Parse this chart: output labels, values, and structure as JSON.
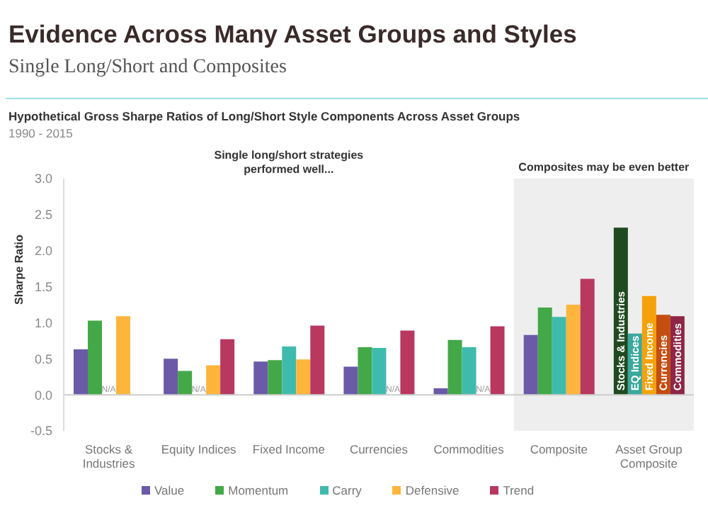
{
  "chart_data": {
    "type": "bar",
    "title": "Evidence Across Many Asset Groups and Styles",
    "subtitle": "Single Long/Short and Composites",
    "ylabel": "Sharpe Ratio",
    "annotations": [
      "Hypothetical Gross Sharpe Ratios of Long/Short Style Components Across Asset Groups",
      "1990 - 2015",
      "Single long/short strategies performed well..."
    ],
    "categories": [
      "Stocks & Industries",
      "Equity Indices",
      "Fixed Income",
      "Currencies",
      "Commodities",
      "Composite",
      "Asset Group Composite"
    ],
    "series": [
      {
        "name": "Value",
        "color": "#6a5aa8",
        "values": [
          0.63,
          0.5,
          0.46,
          0.39,
          0.09,
          0.83,
          null
        ]
      },
      {
        "name": "Momentum",
        "color": "#43a847",
        "values": [
          1.03,
          0.33,
          0.48,
          0.66,
          0.76,
          1.21,
          null
        ]
      },
      {
        "name": "Carry",
        "color": "#3fbbad",
        "values": [
          null,
          null,
          0.67,
          0.65,
          0.66,
          1.08,
          null
        ],
        "value_labels": [
          "N/A",
          "N/A",
          null,
          null,
          null,
          null,
          null
        ]
      },
      {
        "name": "Defensive",
        "color": "#fdb53c",
        "values": [
          1.09,
          0.41,
          0.49,
          null,
          null,
          1.25,
          null
        ],
        "value_labels": [
          null,
          null,
          null,
          "N/A",
          "N/A",
          null,
          null
        ]
      },
      {
        "name": "Trend",
        "color": "#b8385f",
        "values": [
          null,
          0.77,
          0.96,
          0.89,
          0.95,
          1.61,
          null
        ]
      },
      {
        "name": "Stocks & Industries",
        "color": "#1f4a1f",
        "values": [
          null,
          null,
          null,
          null,
          null,
          null,
          2.32
        ]
      },
      {
        "name": "EQ Indices",
        "color": "#3aa89e",
        "values": [
          null,
          null,
          null,
          null,
          null,
          null,
          0.85
        ]
      },
      {
        "name": "Fixed Income",
        "color": "#f5a20a",
        "values": [
          null,
          null,
          null,
          null,
          null,
          null,
          1.37
        ]
      },
      {
        "name": "Currencies",
        "color": "#c44d10",
        "values": [
          null,
          null,
          null,
          null,
          null,
          null,
          1.11
        ]
      },
      {
        "name": "Commodities",
        "color": "#8e2646",
        "values": [
          null,
          null,
          null,
          null,
          null,
          null,
          1.09
        ]
      }
    ],
    "ylim": [
      -0.5,
      3
    ],
    "yticks": [
      {
        "value": -0.5,
        "label": "-0.5"
      },
      {
        "value": 0,
        "label": "0.0"
      },
      {
        "value": 0.5,
        "label": "0.5"
      },
      {
        "value": 1,
        "label": "1.0"
      },
      {
        "value": 1.5,
        "label": "1.5"
      },
      {
        "value": 2,
        "label": "2.0"
      },
      {
        "value": 2.5,
        "label": "2.5"
      },
      {
        "value": 3,
        "label": "3.0"
      }
    ],
    "ref_lines": [
      {
        "axis": "y",
        "value": 0,
        "color": "#cccccc"
      }
    ],
    "bands": [
      {
        "axis": "x",
        "from": "Composite",
        "to": "Asset Group Composite",
        "label": "Composites may be even better",
        "color": "#eeeeee"
      }
    ],
    "legend": "bottom"
  }
}
